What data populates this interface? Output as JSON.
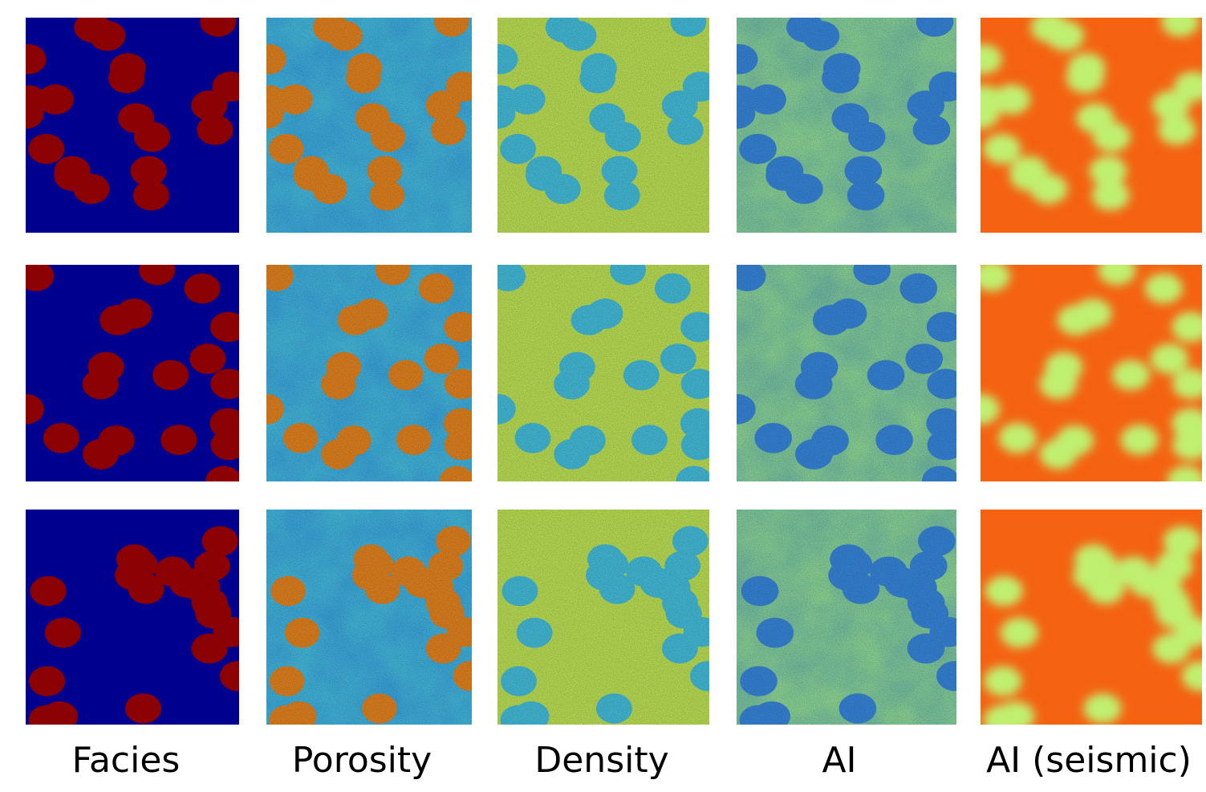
{
  "labels": [
    "Facies",
    "Porosity",
    "Density",
    "AI",
    "AI (seismic)"
  ]
}
